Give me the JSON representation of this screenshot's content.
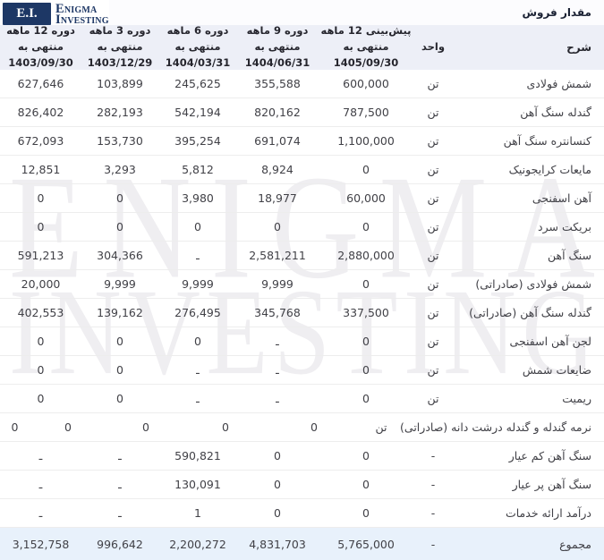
{
  "brand": {
    "initials": "E.I.",
    "name_line1": "Enigma",
    "name_line2": "Investing"
  },
  "page_title": "مقدار فروش",
  "watermark": {
    "line1": "ENIGMA",
    "line2": "INVESTING"
  },
  "colors": {
    "brand_navy": "#1d3765",
    "header_bg": "#edeff7",
    "total_row_bg": "#e8f1fb",
    "row_border": "#ededed",
    "watermark": "#efeef1",
    "text": "#414147"
  },
  "table": {
    "columns": [
      {
        "key": "desc",
        "label": "شرح"
      },
      {
        "key": "unit",
        "label": "واحد"
      },
      {
        "key": "c1",
        "label": "پیش‌بینی 12 ماهه منتهی به",
        "date": "1405/09/30"
      },
      {
        "key": "c2",
        "label": "دوره 9 ماهه منتهی به",
        "date": "1404/06/31"
      },
      {
        "key": "c3",
        "label": "دوره 6 ماهه منتهی به",
        "date": "1404/03/31"
      },
      {
        "key": "c4",
        "label": "دوره 3 ماهه منتهی به",
        "date": "1403/12/29"
      },
      {
        "key": "c5",
        "label": "دوره 12 ماهه منتهی به",
        "date": "1403/09/30"
      }
    ],
    "rows": [
      {
        "desc": "شمش فولادی",
        "unit": "تن",
        "values": [
          "600,000",
          "355,588",
          "245,625",
          "103,899",
          "627,646"
        ]
      },
      {
        "desc": "گندله سنگ آهن",
        "unit": "تن",
        "values": [
          "787,500",
          "820,162",
          "542,194",
          "282,193",
          "826,402"
        ]
      },
      {
        "desc": "کنسانتره سنگ آهن",
        "unit": "تن",
        "values": [
          "1,100,000",
          "691,074",
          "395,254",
          "153,730",
          "672,093"
        ]
      },
      {
        "desc": "مایعات کرایجونیک",
        "unit": "تن",
        "values": [
          "0",
          "8,924",
          "5,812",
          "3,293",
          "12,851"
        ]
      },
      {
        "desc": "آهن اسفنجی",
        "unit": "تن",
        "values": [
          "60,000",
          "18,977",
          "3,980",
          "0",
          "0"
        ]
      },
      {
        "desc": "بریکت سرد",
        "unit": "تن",
        "values": [
          "0",
          "0",
          "0",
          "0",
          "0"
        ]
      },
      {
        "desc": "سنگ آهن",
        "unit": "تن",
        "values": [
          "2,880,000",
          "2,581,211",
          "ـ",
          "304,366",
          "591,213"
        ]
      },
      {
        "desc": "شمش فولادی (صادراتی)",
        "unit": "تن",
        "values": [
          "0",
          "9,999",
          "9,999",
          "9,999",
          "20,000"
        ]
      },
      {
        "desc": "گندله سنگ آهن (صادراتی)",
        "unit": "تن",
        "values": [
          "337,500",
          "345,768",
          "276,495",
          "139,162",
          "402,553"
        ]
      },
      {
        "desc": "لجن آهن اسفنجی",
        "unit": "تن",
        "values": [
          "0",
          "ـ",
          "0",
          "0",
          "0"
        ]
      },
      {
        "desc": "ضایعات شمش",
        "unit": "تن",
        "values": [
          "0",
          "ـ",
          "ـ",
          "0",
          "0"
        ]
      },
      {
        "desc": "ریمیت",
        "unit": "تن",
        "values": [
          "0",
          "ـ",
          "ـ",
          "0",
          "0"
        ]
      },
      {
        "desc": "نرمه گندله و گندله درشت دانه (صادراتی)",
        "unit": "تن",
        "values": [
          "0",
          "0",
          "0",
          "0",
          "0"
        ]
      },
      {
        "desc": "سنگ آهن کم عیار",
        "unit": "-",
        "values": [
          "0",
          "0",
          "590,821",
          "ـ",
          "ـ"
        ]
      },
      {
        "desc": "سنگ آهن پر عیار",
        "unit": "-",
        "values": [
          "0",
          "0",
          "130,091",
          "ـ",
          "ـ"
        ]
      },
      {
        "desc": "درآمد ارائه خدمات",
        "unit": "-",
        "values": [
          "0",
          "0",
          "1",
          "ـ",
          "ـ"
        ]
      }
    ],
    "total_row": {
      "desc": "مجموع",
      "unit": "-",
      "values": [
        "5,765,000",
        "4,831,703",
        "2,200,272",
        "996,642",
        "3,152,758"
      ]
    }
  }
}
